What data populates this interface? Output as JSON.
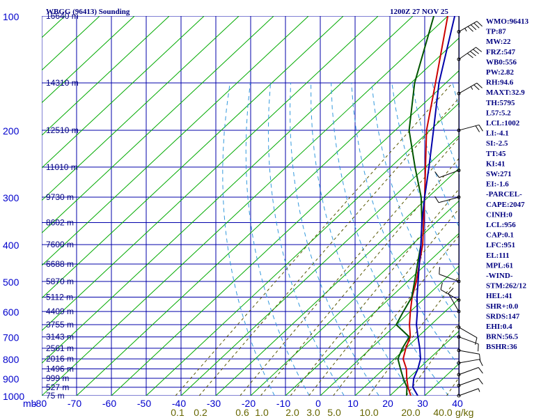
{
  "header": {
    "station": "WBGG (96413) Sounding",
    "time": "1200Z 27 NOV 25"
  },
  "chart_data": {
    "type": "skew-t log-p sounding",
    "pressure_axis": {
      "unit": "mb",
      "range": [
        1000,
        100
      ],
      "ticks": [
        100,
        200,
        300,
        400,
        500,
        600,
        700,
        800,
        900,
        1000
      ]
    },
    "temperature_axis": {
      "unit": "C",
      "range": [
        -80,
        40
      ],
      "ticks": [
        "-80",
        "-70",
        "-60",
        "-50",
        "-40",
        "-30",
        "-20",
        "-10",
        "0",
        "10",
        "20",
        "30",
        "40"
      ]
    },
    "axis_unit_label": "mb",
    "height_labels": [
      {
        "p": 100,
        "label": "16640 m"
      },
      {
        "p": 150,
        "label": "14310 m"
      },
      {
        "p": 200,
        "label": "12510 m"
      },
      {
        "p": 250,
        "label": "11010 m"
      },
      {
        "p": 300,
        "label": "9730 m"
      },
      {
        "p": 350,
        "label": "8602 m"
      },
      {
        "p": 400,
        "label": "7600 m"
      },
      {
        "p": 450,
        "label": "6688 m"
      },
      {
        "p": 500,
        "label": "5870 m"
      },
      {
        "p": 550,
        "label": "5112 m"
      },
      {
        "p": 600,
        "label": "4409 m"
      },
      {
        "p": 650,
        "label": "3755 m"
      },
      {
        "p": 700,
        "label": "3143 m"
      },
      {
        "p": 750,
        "label": "2561 m"
      },
      {
        "p": 800,
        "label": "2016 m"
      },
      {
        "p": 850,
        "label": "1496 m"
      },
      {
        "p": 900,
        "label": "999 m"
      },
      {
        "p": 950,
        "label": "527 m"
      },
      {
        "p": 1000,
        "label": "75 m"
      }
    ],
    "mixing_ratio_labels": [
      "0.1",
      "0.2",
      "0.6",
      "1.0",
      "2.0",
      "3.0",
      "5.0",
      "10.0",
      "20.0",
      "40.0"
    ],
    "mixing_ratio_unit": "g/kg",
    "series": [
      {
        "role": "temperature",
        "color": "#cc0000",
        "points": [
          [
            1000,
            26
          ],
          [
            950,
            22.6
          ],
          [
            900,
            19.5
          ],
          [
            850,
            16.5
          ],
          [
            800,
            12.5
          ],
          [
            750,
            10.0
          ],
          [
            700,
            7.8
          ],
          [
            650,
            3.8
          ],
          [
            600,
            0.0
          ],
          [
            550,
            -3.9
          ],
          [
            500,
            -7.5
          ],
          [
            450,
            -12.0
          ],
          [
            400,
            -17.0
          ],
          [
            350,
            -23.5
          ],
          [
            300,
            -31.0
          ],
          [
            250,
            -40.0
          ],
          [
            200,
            -51.0
          ],
          [
            150,
            -63.0
          ],
          [
            100,
            -80.0
          ]
        ]
      },
      {
        "role": "dewpoint",
        "color": "#005500",
        "points": [
          [
            1000,
            24.8
          ],
          [
            950,
            22.3
          ],
          [
            900,
            18.5
          ],
          [
            850,
            14.8
          ],
          [
            800,
            11.0
          ],
          [
            750,
            9.0
          ],
          [
            700,
            7.5
          ],
          [
            650,
            0.0
          ],
          [
            600,
            -2.0
          ],
          [
            550,
            -4.0
          ],
          [
            500,
            -8.0
          ],
          [
            450,
            -12.5
          ],
          [
            400,
            -17.5
          ],
          [
            350,
            -24.0
          ],
          [
            300,
            -32.0
          ],
          [
            250,
            -43.0
          ],
          [
            200,
            -56.0
          ],
          [
            150,
            -69.0
          ],
          [
            100,
            -84.0
          ]
        ]
      },
      {
        "role": "parcel",
        "color": "#0000aa",
        "points": [
          [
            1000,
            28
          ],
          [
            950,
            24.0
          ],
          [
            900,
            21.5
          ],
          [
            850,
            19.8
          ],
          [
            800,
            17.5
          ],
          [
            750,
            14.0
          ],
          [
            700,
            10.0
          ],
          [
            650,
            5.8
          ],
          [
            600,
            2.0
          ],
          [
            550,
            -2.5
          ],
          [
            500,
            -7.0
          ],
          [
            450,
            -12.0
          ],
          [
            400,
            -17.5
          ],
          [
            350,
            -24.0
          ],
          [
            300,
            -31.0
          ],
          [
            250,
            -39.0
          ],
          [
            200,
            -49.0
          ],
          [
            150,
            -62.0
          ],
          [
            100,
            -78.0
          ]
        ]
      }
    ],
    "indices": [
      "WMO:96413",
      "TP:87",
      "MW:22",
      "FRZ:547",
      "WB0:556",
      "PW:2.82",
      "RH:94.6",
      "MAXT:32.9",
      "TH:5795",
      "L57:5.2",
      "LCL:1002",
      "LI:-4.1",
      "SI:-2.5",
      "TT:45",
      "KI:41",
      "SW:271",
      "EI:-1.6",
      "-PARCEL-",
      "CAPE:2047",
      "CINH:0",
      "LCL:956",
      "CAP:0.1",
      "LFC:951",
      "EL:111",
      "MPL:61",
      "-WIND-",
      "STM:262/12",
      "HEL:41",
      "SHR+:0.0",
      "SRDS:147",
      "EHI:0.4",
      "BRN:56.5",
      "BSHR:36"
    ],
    "wind_barbs": [
      {
        "p": 110,
        "dir": 240,
        "spd": 45
      },
      {
        "p": 130,
        "dir": 235,
        "spd": 40
      },
      {
        "p": 160,
        "dir": 240,
        "spd": 25
      },
      {
        "p": 200,
        "dir": 255,
        "spd": 20
      },
      {
        "p": 255,
        "dir": 70,
        "spd": 10
      },
      {
        "p": 300,
        "dir": 75,
        "spd": 10
      },
      {
        "p": 500,
        "dir": 110,
        "spd": 10
      },
      {
        "p": 560,
        "dir": 120,
        "spd": 10
      },
      {
        "p": 600,
        "dir": 150,
        "spd": 10
      },
      {
        "p": 660,
        "dir": 300,
        "spd": 10
      },
      {
        "p": 700,
        "dir": 290,
        "spd": 10
      },
      {
        "p": 760,
        "dir": 280,
        "spd": 10
      },
      {
        "p": 820,
        "dir": 260,
        "spd": 10
      },
      {
        "p": 880,
        "dir": 250,
        "spd": 10
      },
      {
        "p": 940,
        "dir": 250,
        "spd": 10
      },
      {
        "p": 1000,
        "dir": 250,
        "spd": 5
      }
    ],
    "grid": true
  }
}
